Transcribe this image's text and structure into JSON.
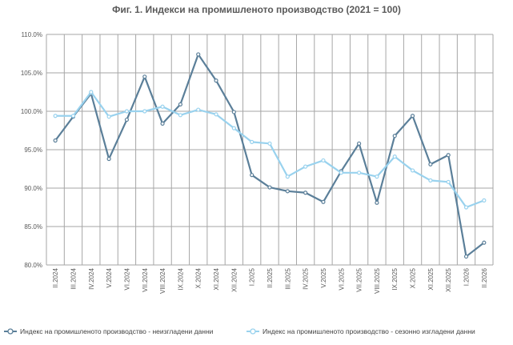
{
  "chart_data": {
    "type": "line",
    "title": "Фиг. 1. Индекси на промишленото производство (2021 = 100)",
    "xlabel": "",
    "ylabel": "",
    "categories": [
      "II.2024",
      "III.2024",
      "IV.2024",
      "V.2024",
      "VI.2024",
      "VII.2024",
      "VIII.2024",
      "IX.2024",
      "X.2024",
      "XI.2024",
      "XII.2024",
      "I.2025",
      "II.2025",
      "III.2025",
      "IV.2025",
      "V.2025",
      "VI.2025",
      "VII.2025",
      "VIII.2025",
      "IX.2025",
      "X.2025",
      "XI.2025",
      "XII.2025",
      "I.2026",
      "II.2026"
    ],
    "ylim": [
      80,
      110
    ],
    "yticks": [
      80,
      85,
      90,
      95,
      100,
      105,
      110
    ],
    "ytick_labels": [
      "80.0%",
      "85.0%",
      "90.0%",
      "95.0%",
      "100.0%",
      "105.0%",
      "110.0%"
    ],
    "grid": true,
    "legend_position": "bottom",
    "series": [
      {
        "name": "Индекс на промишленото производство - неизгладени данни",
        "color": "#5b7f99",
        "values": [
          96.2,
          99.3,
          102.3,
          93.8,
          98.9,
          104.5,
          98.4,
          100.9,
          107.4,
          104.0,
          99.9,
          91.7,
          90.1,
          89.6,
          89.4,
          88.2,
          92.2,
          95.8,
          88.1,
          96.8,
          99.4,
          93.1,
          94.3,
          81.1,
          82.9
        ]
      },
      {
        "name": "Индекс на промишленото производство - сезонно изгладени данни",
        "color": "#99d2ee",
        "values": [
          99.4,
          99.4,
          102.5,
          99.3,
          100.0,
          100.0,
          100.6,
          99.5,
          100.2,
          99.6,
          97.8,
          96.0,
          95.8,
          91.5,
          92.8,
          93.6,
          92.0,
          92.0,
          91.5,
          94.1,
          92.3,
          91.0,
          90.8,
          87.5,
          88.4
        ]
      }
    ]
  }
}
